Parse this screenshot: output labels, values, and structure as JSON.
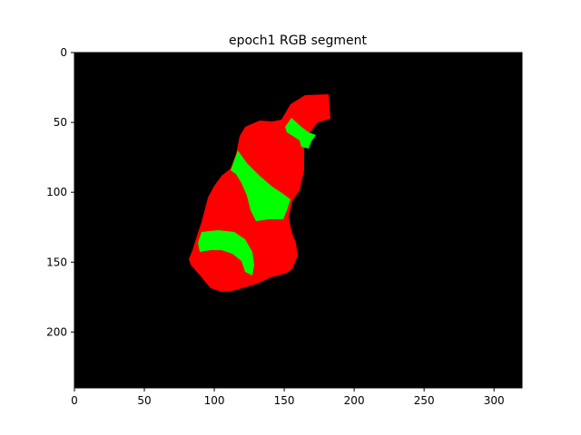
{
  "figure": {
    "title": "epoch1 RGB segment",
    "background": "#000000",
    "colors": {
      "region_red": "#ff0000",
      "region_green": "#00ff00"
    }
  },
  "axes": {
    "x": {
      "range": [
        0,
        320
      ],
      "ticks": [
        0,
        50,
        100,
        150,
        200,
        250,
        300
      ],
      "tick_labels": [
        "0",
        "50",
        "100",
        "150",
        "200",
        "250",
        "300"
      ]
    },
    "y": {
      "range": [
        0,
        240
      ],
      "inverted": true,
      "ticks": [
        0,
        50,
        100,
        150,
        200
      ],
      "tick_labels": [
        "0",
        "50",
        "100",
        "150",
        "200"
      ]
    }
  }
}
